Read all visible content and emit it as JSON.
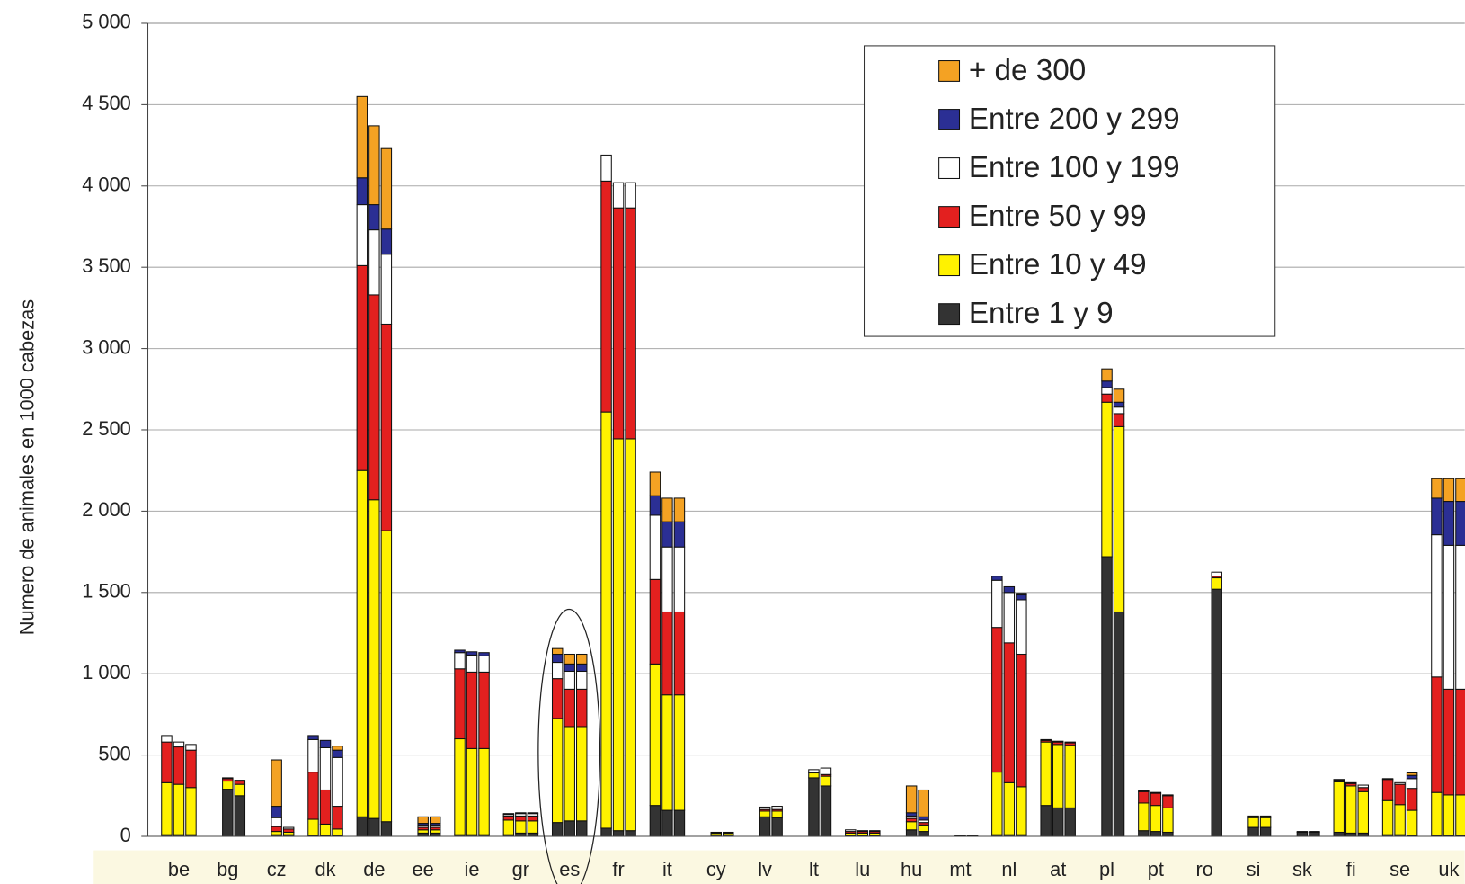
{
  "chart_data": {
    "type": "stacked-grouped-bar",
    "y_label": "Numero de animales en 1000 cabezas",
    "categories": [
      "be",
      "bg",
      "cz",
      "dk",
      "de",
      "ee",
      "ie",
      "gr",
      "es",
      "fr",
      "it",
      "cy",
      "lv",
      "lt",
      "lu",
      "hu",
      "mt",
      "nl",
      "at",
      "pl",
      "pt",
      "ro",
      "si",
      "sk",
      "fi",
      "se",
      "uk"
    ],
    "ylim": [
      0,
      5000
    ],
    "yticks": [
      0,
      500,
      {
        "value": 1000,
        "label": "1 000"
      },
      {
        "value": 1500,
        "label": "1 500"
      },
      {
        "value": 2000,
        "label": "2 000"
      },
      {
        "value": 2500,
        "label": "2 500"
      },
      {
        "value": 3000,
        "label": "3 000"
      },
      {
        "value": 3500,
        "label": "3 500"
      },
      {
        "value": 4000,
        "label": "4 000"
      },
      {
        "value": 4500,
        "label": "4 500"
      },
      {
        "value": 5000,
        "label": "5 000"
      }
    ],
    "grid": true,
    "series": [
      {
        "name": "+ de 300",
        "color": "#f4a223",
        "values": [
          [
            0,
            0,
            0
          ],
          [
            null,
            0,
            0
          ],
          [
            null,
            285,
            0
          ],
          [
            0,
            0,
            25
          ],
          [
            500,
            485,
            495
          ],
          [
            null,
            40,
            40
          ],
          [
            0,
            0,
            0
          ],
          [
            0,
            0,
            0
          ],
          [
            35,
            60,
            60
          ],
          [
            0,
            0,
            0
          ],
          [
            145,
            145,
            145
          ],
          [
            null,
            0,
            0
          ],
          [
            null,
            0,
            0
          ],
          [
            null,
            0,
            0
          ],
          [
            0,
            0,
            0
          ],
          [
            null,
            165,
            165
          ],
          [
            null,
            0,
            0
          ],
          [
            0,
            0,
            10
          ],
          [
            0,
            0,
            0
          ],
          [
            null,
            75,
            80
          ],
          [
            0,
            0,
            0
          ],
          [
            null,
            null,
            0
          ],
          [
            null,
            0,
            0
          ],
          [
            null,
            0,
            0
          ],
          [
            0,
            0,
            0
          ],
          [
            0,
            0,
            15
          ],
          [
            120,
            140,
            140
          ]
        ]
      },
      {
        "name": "Entre 200 y 299",
        "color": "#2b2f94",
        "values": [
          [
            0,
            0,
            0
          ],
          [
            null,
            0,
            0
          ],
          [
            null,
            70,
            0
          ],
          [
            25,
            45,
            45
          ],
          [
            165,
            155,
            155
          ],
          [
            null,
            10,
            10
          ],
          [
            15,
            20,
            20
          ],
          [
            5,
            5,
            5
          ],
          [
            50,
            45,
            45
          ],
          [
            0,
            0,
            0
          ],
          [
            120,
            155,
            155
          ],
          [
            null,
            0,
            0
          ],
          [
            null,
            0,
            0
          ],
          [
            null,
            0,
            0
          ],
          [
            0,
            0,
            0
          ],
          [
            null,
            20,
            20
          ],
          [
            null,
            0,
            0
          ],
          [
            25,
            35,
            30
          ],
          [
            0,
            0,
            0
          ],
          [
            null,
            40,
            30
          ],
          [
            0,
            0,
            0
          ],
          [
            null,
            null,
            0
          ],
          [
            null,
            0,
            0
          ],
          [
            null,
            0,
            0
          ],
          [
            0,
            0,
            0
          ],
          [
            0,
            0,
            20
          ],
          [
            225,
            270,
            270
          ]
        ]
      },
      {
        "name": "Entre 100 y 199",
        "color": "#ffffff",
        "values": [
          [
            40,
            30,
            35
          ],
          [
            null,
            5,
            5
          ],
          [
            null,
            55,
            10
          ],
          [
            200,
            260,
            300
          ],
          [
            375,
            400,
            430
          ],
          [
            null,
            15,
            15
          ],
          [
            100,
            105,
            100
          ],
          [
            10,
            15,
            15
          ],
          [
            100,
            110,
            110
          ],
          [
            160,
            155,
            155
          ],
          [
            395,
            400,
            400
          ],
          [
            null,
            0,
            0
          ],
          [
            null,
            15,
            20
          ],
          [
            null,
            20,
            40
          ],
          [
            10,
            5,
            5
          ],
          [
            null,
            15,
            15
          ],
          [
            null,
            0,
            0
          ],
          [
            290,
            310,
            335
          ],
          [
            5,
            5,
            5
          ],
          [
            null,
            40,
            40
          ],
          [
            5,
            5,
            5
          ],
          [
            null,
            null,
            25
          ],
          [
            null,
            5,
            5
          ],
          [
            null,
            0,
            0
          ],
          [
            5,
            5,
            15
          ],
          [
            5,
            10,
            60
          ],
          [
            875,
            885,
            885
          ]
        ]
      },
      {
        "name": "Entre 50 y 99",
        "color": "#e3201f",
        "values": [
          [
            250,
            230,
            230
          ],
          [
            null,
            15,
            20
          ],
          [
            null,
            30,
            20
          ],
          [
            290,
            210,
            140
          ],
          [
            1260,
            1260,
            1270
          ],
          [
            null,
            15,
            15
          ],
          [
            430,
            470,
            470
          ],
          [
            25,
            30,
            30
          ],
          [
            245,
            230,
            230
          ],
          [
            1420,
            1420,
            1420
          ],
          [
            520,
            510,
            510
          ],
          [
            null,
            5,
            5
          ],
          [
            null,
            10,
            10
          ],
          [
            null,
            0,
            10
          ],
          [
            10,
            10,
            10
          ],
          [
            null,
            20,
            15
          ],
          [
            null,
            0,
            0
          ],
          [
            890,
            860,
            815
          ],
          [
            10,
            15,
            15
          ],
          [
            null,
            50,
            80
          ],
          [
            70,
            75,
            75
          ],
          [
            null,
            null,
            10
          ],
          [
            null,
            5,
            5
          ],
          [
            null,
            0,
            0
          ],
          [
            10,
            15,
            25
          ],
          [
            130,
            125,
            135
          ],
          [
            710,
            650,
            650
          ]
        ]
      },
      {
        "name": "Entre 10 y 49",
        "color": "#fff200",
        "values": [
          [
            320,
            310,
            290
          ],
          [
            null,
            50,
            70
          ],
          [
            null,
            20,
            15
          ],
          [
            100,
            70,
            40
          ],
          [
            2130,
            1960,
            1790
          ],
          [
            null,
            20,
            20
          ],
          [
            590,
            530,
            530
          ],
          [
            90,
            75,
            75
          ],
          [
            640,
            580,
            580
          ],
          [
            2560,
            2410,
            2410
          ],
          [
            870,
            710,
            710
          ],
          [
            null,
            10,
            10
          ],
          [
            null,
            35,
            40
          ],
          [
            null,
            30,
            60
          ],
          [
            15,
            15,
            15
          ],
          [
            null,
            50,
            40
          ],
          [
            null,
            2,
            2
          ],
          [
            385,
            320,
            295
          ],
          [
            390,
            390,
            385
          ],
          [
            null,
            950,
            1140
          ],
          [
            170,
            160,
            150
          ],
          [
            null,
            null,
            70
          ],
          [
            null,
            60,
            60
          ],
          [
            null,
            5,
            5
          ],
          [
            310,
            290,
            255
          ],
          [
            210,
            185,
            155
          ],
          [
            265,
            250,
            250
          ]
        ]
      },
      {
        "name": "Entre 1 y 9",
        "color": "#333333",
        "values": [
          [
            10,
            10,
            10
          ],
          [
            null,
            290,
            250
          ],
          [
            null,
            10,
            10
          ],
          [
            5,
            5,
            5
          ],
          [
            120,
            110,
            90
          ],
          [
            null,
            20,
            20
          ],
          [
            10,
            10,
            10
          ],
          [
            10,
            20,
            20
          ],
          [
            85,
            95,
            95
          ],
          [
            50,
            35,
            35
          ],
          [
            190,
            160,
            160
          ],
          [
            null,
            10,
            10
          ],
          [
            null,
            120,
            115
          ],
          [
            null,
            360,
            310
          ],
          [
            5,
            5,
            5
          ],
          [
            null,
            40,
            30
          ],
          [
            null,
            3,
            3
          ],
          [
            10,
            10,
            10
          ],
          [
            190,
            175,
            175
          ],
          [
            null,
            1720,
            1380
          ],
          [
            35,
            30,
            25
          ],
          [
            null,
            null,
            1520
          ],
          [
            null,
            55,
            55
          ],
          [
            null,
            25,
            25
          ],
          [
            25,
            20,
            20
          ],
          [
            10,
            10,
            5
          ],
          [
            5,
            5,
            5
          ]
        ]
      }
    ]
  }
}
